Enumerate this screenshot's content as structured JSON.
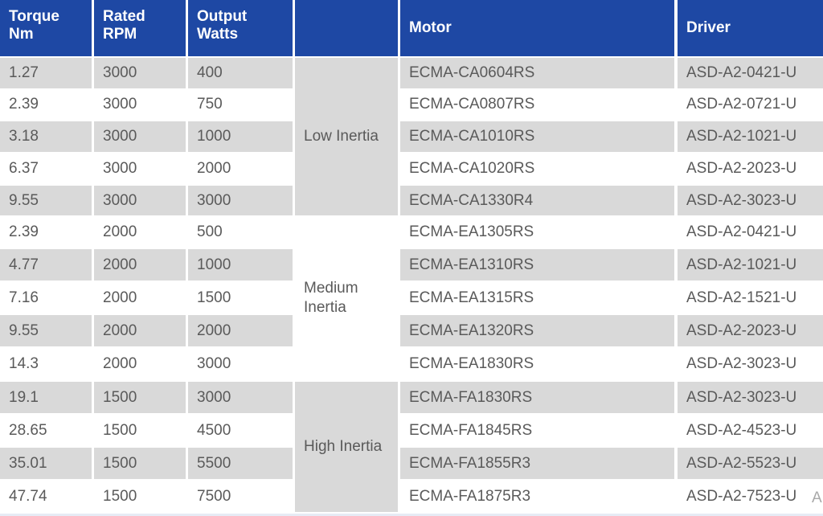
{
  "headers": {
    "torque": "Torque\nNm",
    "rpm": "Rated\nRPM",
    "watts": "Output\nWatts",
    "group": "",
    "motor": "Motor",
    "driver": "Driver"
  },
  "groups": {
    "low": "Low Inertia",
    "medium": "Medium\nInertia",
    "high": "High Inertia"
  },
  "rows": [
    {
      "torque": "1.27",
      "rpm": "3000",
      "watts": "400",
      "motor": "ECMA-CA0604RS",
      "driver": "ASD-A2-0421-U"
    },
    {
      "torque": "2.39",
      "rpm": "3000",
      "watts": "750",
      "motor": "ECMA-CA0807RS",
      "driver": "ASD-A2-0721-U"
    },
    {
      "torque": "3.18",
      "rpm": "3000",
      "watts": "1000",
      "motor": "ECMA-CA1010RS",
      "driver": "ASD-A2-1021-U"
    },
    {
      "torque": "6.37",
      "rpm": "3000",
      "watts": "2000",
      "motor": "ECMA-CA1020RS",
      "driver": "ASD-A2-2023-U"
    },
    {
      "torque": "9.55",
      "rpm": "3000",
      "watts": "3000",
      "motor": "ECMA-CA1330R4",
      "driver": "ASD-A2-3023-U"
    },
    {
      "torque": "2.39",
      "rpm": "2000",
      "watts": "500",
      "motor": "ECMA-EA1305RS",
      "driver": "ASD-A2-0421-U"
    },
    {
      "torque": "4.77",
      "rpm": "2000",
      "watts": "1000",
      "motor": "ECMA-EA1310RS",
      "driver": "ASD-A2-1021-U"
    },
    {
      "torque": "7.16",
      "rpm": "2000",
      "watts": "1500",
      "motor": "ECMA-EA1315RS",
      "driver": "ASD-A2-1521-U"
    },
    {
      "torque": "9.55",
      "rpm": "2000",
      "watts": "2000",
      "motor": "ECMA-EA1320RS",
      "driver": "ASD-A2-2023-U"
    },
    {
      "torque": "14.3",
      "rpm": "2000",
      "watts": "3000",
      "motor": "ECMA-EA1830RS",
      "driver": "ASD-A2-3023-U"
    },
    {
      "torque": "19.1",
      "rpm": "1500",
      "watts": "3000",
      "motor": "ECMA-FA1830RS",
      "driver": "ASD-A2-3023-U"
    },
    {
      "torque": "28.65",
      "rpm": "1500",
      "watts": "4500",
      "motor": "ECMA-FA1845RS",
      "driver": "ASD-A2-4523-U"
    },
    {
      "torque": "35.01",
      "rpm": "1500",
      "watts": "5500",
      "motor": "ECMA-FA1855R3",
      "driver": "ASD-A2-5523-U"
    },
    {
      "torque": "47.74",
      "rpm": "1500",
      "watts": "7500",
      "motor": "ECMA-FA1875R3",
      "driver": "ASD-A2-7523-U"
    }
  ],
  "edge_fragment": "A"
}
